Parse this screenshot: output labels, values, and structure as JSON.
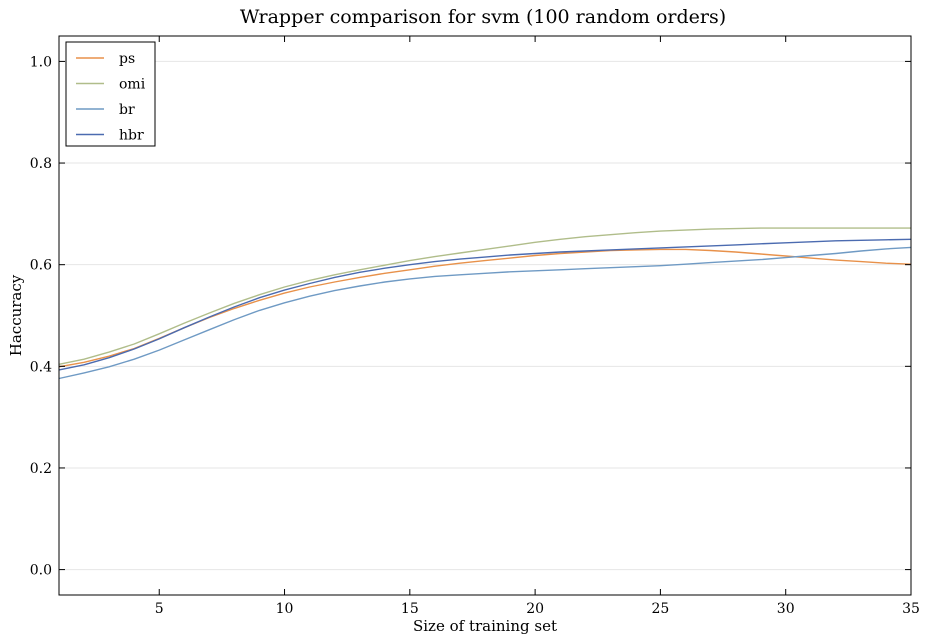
{
  "chart_data": {
    "type": "line",
    "title": "Wrapper comparison for svm (100 random orders)",
    "xlabel": "Size of training set",
    "ylabel": "Haccuracy",
    "xlim": [
      1,
      35
    ],
    "ylim": [
      -0.05,
      1.05
    ],
    "x_ticks": [
      5,
      10,
      15,
      20,
      25,
      30,
      35
    ],
    "x_tick_labels": [
      "5",
      "10",
      "15",
      "20",
      "25",
      "30",
      "35"
    ],
    "y_ticks": [
      0.0,
      0.2,
      0.4,
      0.6,
      0.8,
      1.0
    ],
    "y_tick_labels": [
      "0.0",
      "0.2",
      "0.4",
      "0.6",
      "0.8",
      "1.0"
    ],
    "grid": "horizontal",
    "legend_position": "top-left",
    "x": [
      1,
      2,
      3,
      4,
      5,
      6,
      7,
      8,
      9,
      10,
      11,
      12,
      13,
      14,
      15,
      16,
      17,
      18,
      19,
      20,
      21,
      22,
      23,
      24,
      25,
      26,
      27,
      28,
      29,
      30,
      31,
      32,
      33,
      34,
      35
    ],
    "series": [
      {
        "name": "ps",
        "color": "#e8914a",
        "values": [
          0.399,
          0.408,
          0.42,
          0.435,
          0.455,
          0.476,
          0.496,
          0.514,
          0.53,
          0.544,
          0.556,
          0.566,
          0.575,
          0.583,
          0.59,
          0.597,
          0.603,
          0.608,
          0.613,
          0.618,
          0.622,
          0.625,
          0.628,
          0.629,
          0.63,
          0.63,
          0.628,
          0.625,
          0.621,
          0.617,
          0.613,
          0.609,
          0.606,
          0.603,
          0.601
        ]
      },
      {
        "name": "omi",
        "color": "#b0bd8a",
        "values": [
          0.404,
          0.414,
          0.428,
          0.444,
          0.464,
          0.485,
          0.505,
          0.524,
          0.541,
          0.556,
          0.569,
          0.58,
          0.59,
          0.599,
          0.608,
          0.616,
          0.623,
          0.63,
          0.637,
          0.644,
          0.65,
          0.655,
          0.659,
          0.663,
          0.666,
          0.668,
          0.67,
          0.671,
          0.672,
          0.672,
          0.672,
          0.672,
          0.672,
          0.672,
          0.672
        ]
      },
      {
        "name": "br",
        "color": "#6f9ac4",
        "values": [
          0.376,
          0.387,
          0.399,
          0.414,
          0.432,
          0.452,
          0.472,
          0.492,
          0.51,
          0.525,
          0.538,
          0.549,
          0.558,
          0.566,
          0.572,
          0.577,
          0.58,
          0.583,
          0.586,
          0.588,
          0.59,
          0.592,
          0.594,
          0.596,
          0.598,
          0.601,
          0.604,
          0.607,
          0.61,
          0.614,
          0.618,
          0.622,
          0.627,
          0.631,
          0.634
        ]
      },
      {
        "name": "hbr",
        "color": "#4b6bb0",
        "values": [
          0.393,
          0.403,
          0.417,
          0.434,
          0.454,
          0.476,
          0.497,
          0.517,
          0.535,
          0.55,
          0.563,
          0.575,
          0.585,
          0.593,
          0.6,
          0.606,
          0.611,
          0.615,
          0.619,
          0.622,
          0.625,
          0.627,
          0.629,
          0.631,
          0.633,
          0.635,
          0.637,
          0.639,
          0.641,
          0.643,
          0.645,
          0.647,
          0.648,
          0.649,
          0.65
        ]
      }
    ]
  }
}
